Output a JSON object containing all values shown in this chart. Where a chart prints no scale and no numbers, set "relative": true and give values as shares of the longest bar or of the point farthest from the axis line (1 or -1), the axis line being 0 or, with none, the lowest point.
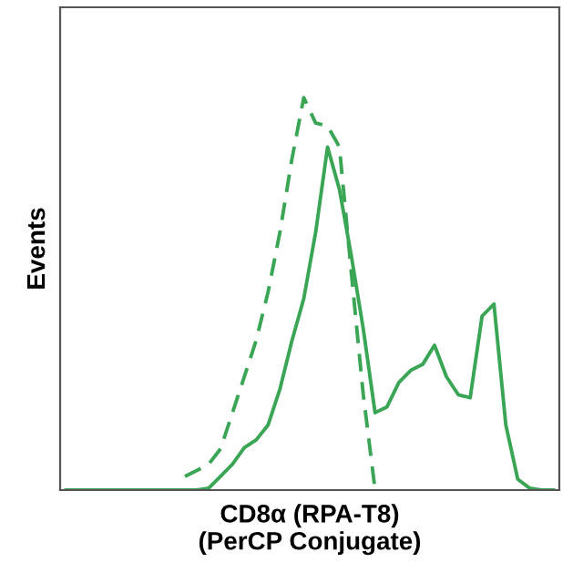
{
  "chart_data": {
    "type": "line",
    "relative": true,
    "xlabel": "CD8α (RPA-T8)\n(PerCP Conjugate)",
    "ylabel": "Events",
    "grid": false,
    "legend": false,
    "marker": "none",
    "categories": [
      null,
      null,
      null,
      null,
      null,
      null,
      null,
      null,
      null,
      null,
      null,
      null,
      null,
      null,
      null,
      null,
      null,
      null,
      null,
      null,
      null,
      null,
      null,
      null,
      null,
      null,
      null,
      null,
      null,
      null,
      null,
      null,
      null,
      null,
      null,
      null,
      null,
      null,
      null,
      null,
      null,
      null
    ],
    "series": [
      {
        "color": "#3aa655",
        "line_style": "solid",
        "values": [
          0,
          0,
          0,
          0,
          0,
          0,
          0,
          0,
          0,
          0,
          0,
          0,
          0.005,
          0.035,
          0.066,
          0.108,
          0.128,
          0.166,
          0.258,
          0.38,
          0.488,
          0.657,
          0.874,
          0.766,
          0.597,
          0.412,
          0.197,
          0.212,
          0.274,
          0.305,
          0.32,
          0.369,
          0.289,
          0.243,
          0.235,
          0.443,
          0.474,
          0.166,
          0.028,
          0.005,
          0,
          0
        ]
      },
      {
        "color": "#3aa655",
        "line_style": "dashed",
        "values": [
          null,
          null,
          null,
          null,
          null,
          null,
          null,
          null,
          null,
          null,
          0.035,
          0.05,
          0.066,
          0.105,
          0.197,
          0.289,
          0.382,
          0.505,
          0.658,
          0.843,
          1.0,
          0.935,
          0.928,
          0.874,
          0.554,
          0.245,
          0,
          null,
          null,
          null,
          null,
          null,
          null,
          null,
          null,
          null,
          null,
          null,
          null,
          null,
          null,
          null
        ]
      }
    ]
  }
}
